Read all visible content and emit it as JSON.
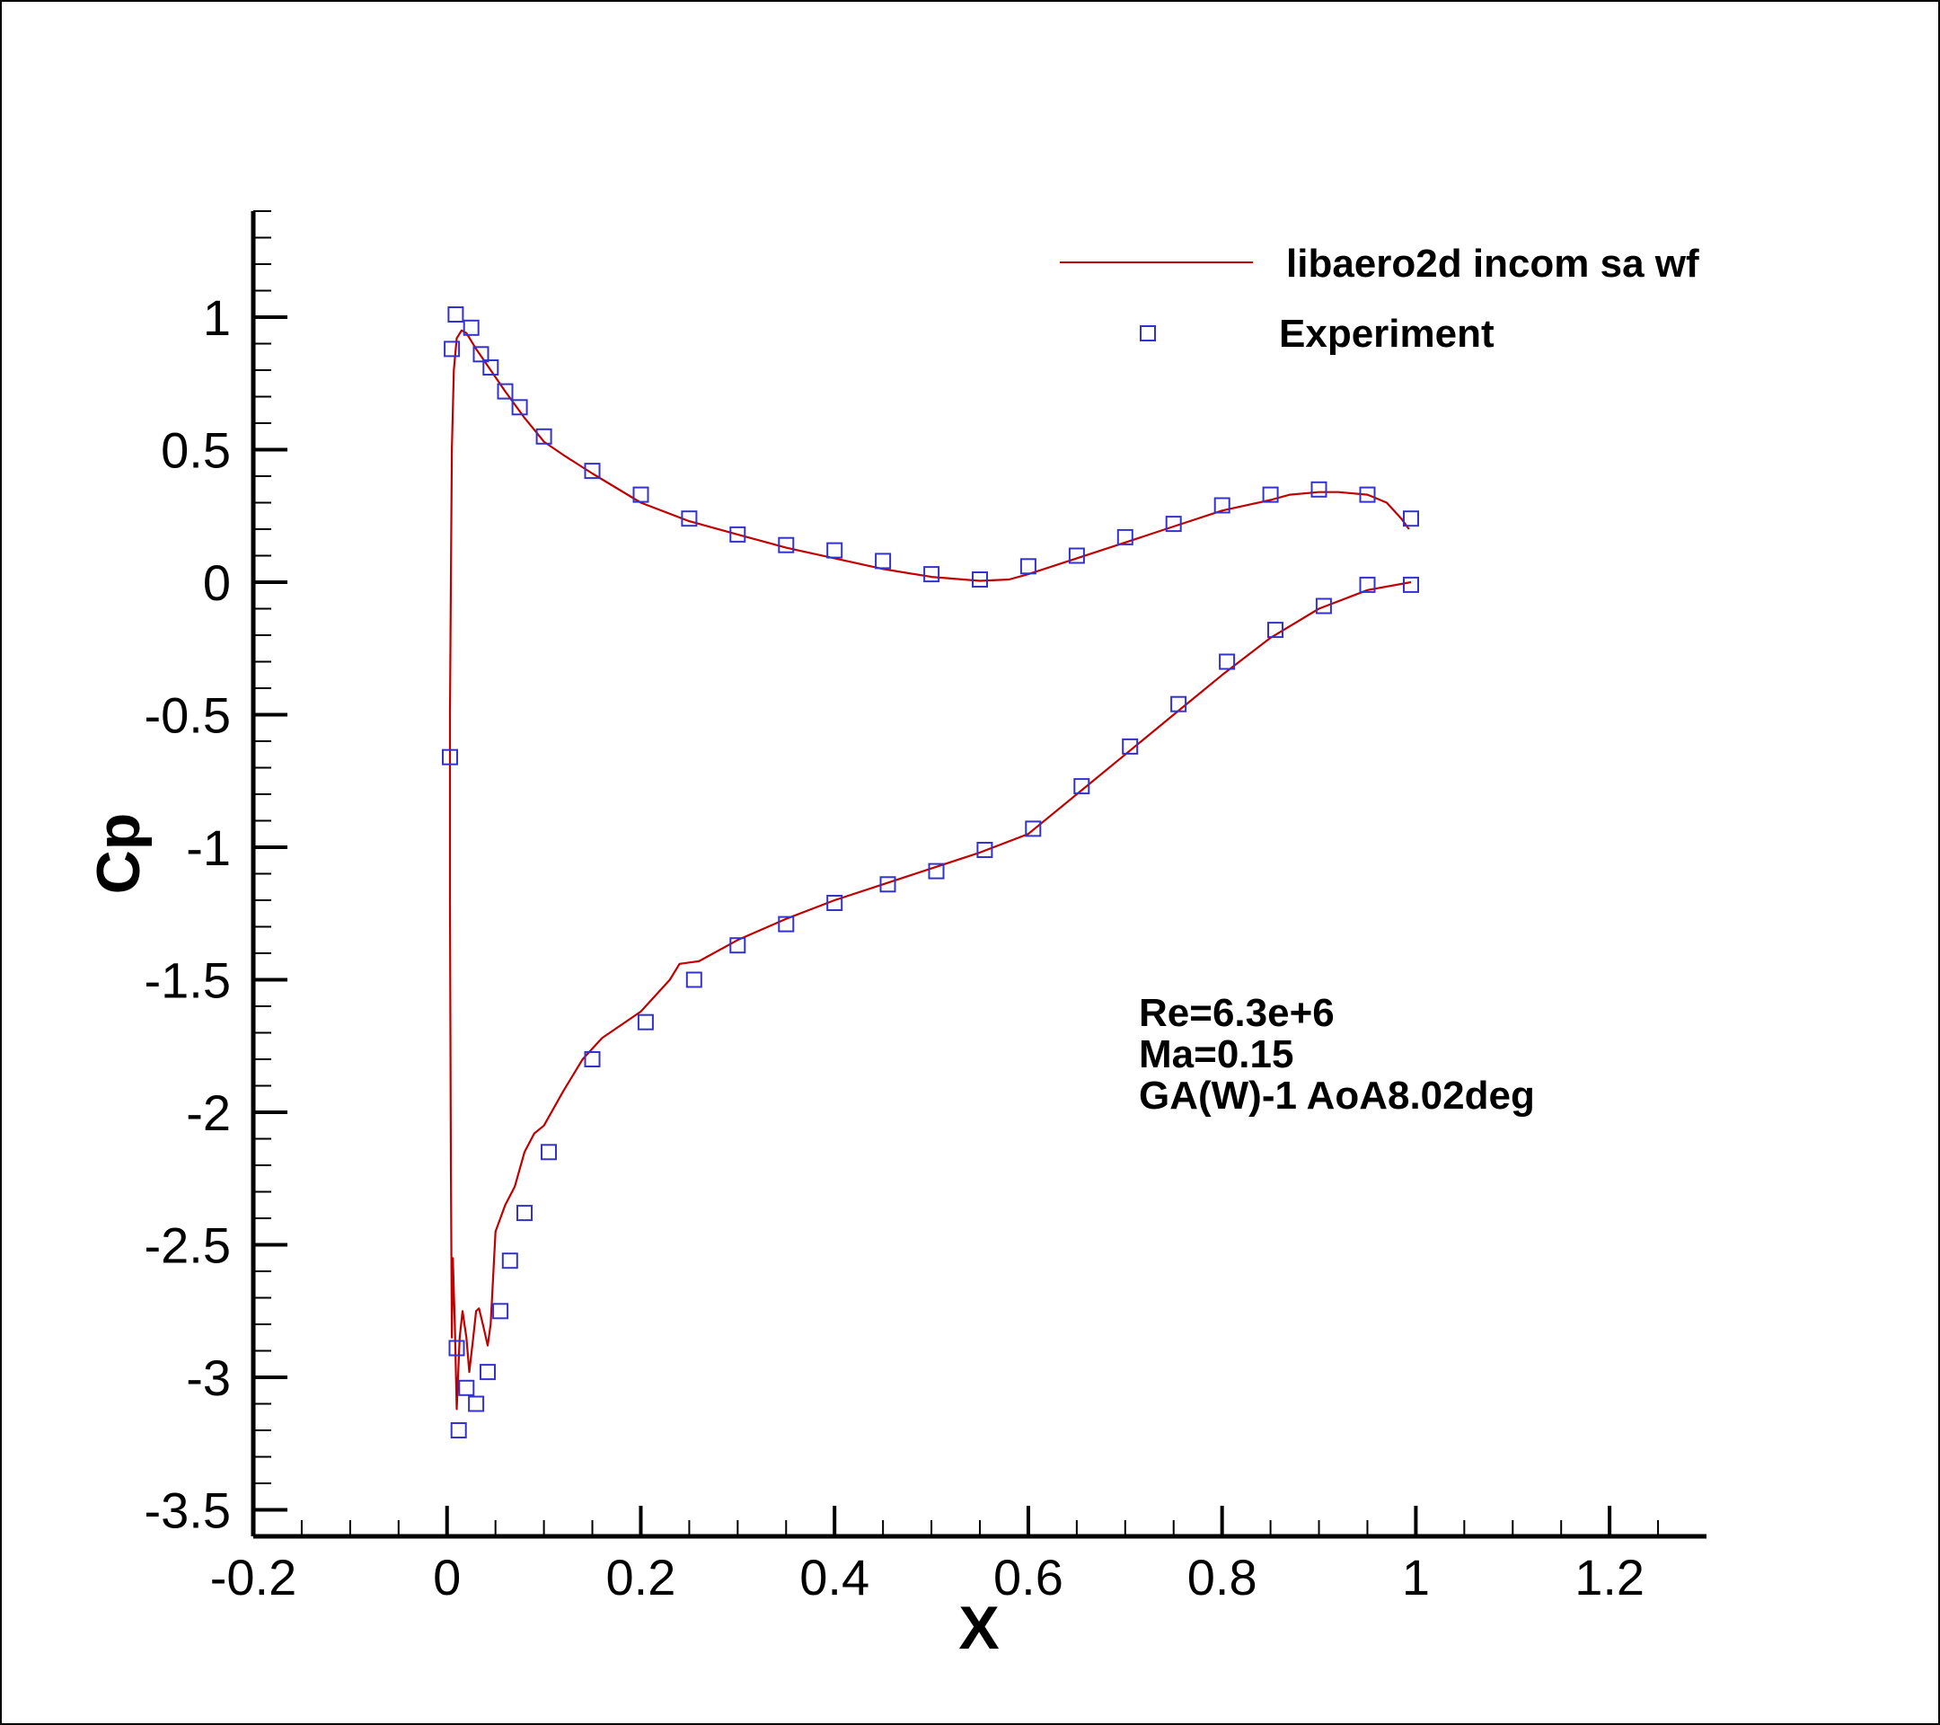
{
  "chart_data": {
    "type": "scatter",
    "xlabel": "X",
    "ylabel": "Cp",
    "xlim": [
      -0.2,
      1.3
    ],
    "ylim": [
      -3.6,
      1.4
    ],
    "y_axis_inverted": true,
    "grid": false,
    "x_ticks": [
      -0.2,
      0,
      0.2,
      0.4,
      0.6,
      0.8,
      1,
      1.2
    ],
    "x_tick_labels": [
      "-0.2",
      "0",
      "0.2",
      "0.4",
      "0.6",
      "0.8",
      "1",
      "1.2"
    ],
    "y_ticks": [
      1,
      0.5,
      0,
      -0.5,
      -1,
      -1.5,
      -2,
      -2.5,
      -3,
      -3.5
    ],
    "y_tick_labels": [
      "1",
      "0.5",
      "0",
      "-0.5",
      "-1",
      "-1.5",
      "-2",
      "-2.5",
      "-3",
      "-3.5"
    ],
    "legend_position": "top-right",
    "annotations": [
      "Re=6.3e+6",
      "Ma=0.15",
      "GA(W)-1 AoA8.02deg"
    ],
    "series": [
      {
        "name": "libaero2d incom sa wf",
        "kind": "line",
        "color": "#c00000",
        "points": [
          [
            0.993,
            0.2
          ],
          [
            0.985,
            0.24
          ],
          [
            0.97,
            0.3
          ],
          [
            0.95,
            0.33
          ],
          [
            0.92,
            0.34
          ],
          [
            0.9,
            0.34
          ],
          [
            0.87,
            0.33
          ],
          [
            0.85,
            0.31
          ],
          [
            0.8,
            0.27
          ],
          [
            0.75,
            0.21
          ],
          [
            0.7,
            0.15
          ],
          [
            0.65,
            0.09
          ],
          [
            0.6,
            0.03
          ],
          [
            0.58,
            0.01
          ],
          [
            0.55,
            0.005
          ],
          [
            0.5,
            0.02
          ],
          [
            0.45,
            0.05
          ],
          [
            0.4,
            0.09
          ],
          [
            0.35,
            0.13
          ],
          [
            0.3,
            0.18
          ],
          [
            0.25,
            0.23
          ],
          [
            0.2,
            0.3
          ],
          [
            0.15,
            0.41
          ],
          [
            0.12,
            0.48
          ],
          [
            0.1,
            0.53
          ],
          [
            0.08,
            0.62
          ],
          [
            0.06,
            0.72
          ],
          [
            0.045,
            0.8
          ],
          [
            0.03,
            0.88
          ],
          [
            0.02,
            0.94
          ],
          [
            0.015,
            0.95
          ],
          [
            0.01,
            0.92
          ],
          [
            0.007,
            0.8
          ],
          [
            0.005,
            0.5
          ],
          [
            0.004,
            0.0
          ],
          [
            0.003,
            -0.5
          ],
          [
            0.003,
            -1.2
          ],
          [
            0.004,
            -2.2
          ],
          [
            0.005,
            -2.85
          ],
          [
            0.006,
            -2.55
          ],
          [
            0.008,
            -2.8
          ],
          [
            0.01,
            -3.12
          ],
          [
            0.013,
            -2.85
          ],
          [
            0.016,
            -2.75
          ],
          [
            0.02,
            -2.85
          ],
          [
            0.023,
            -2.98
          ],
          [
            0.027,
            -2.85
          ],
          [
            0.03,
            -2.75
          ],
          [
            0.033,
            -2.74
          ],
          [
            0.037,
            -2.8
          ],
          [
            0.042,
            -2.88
          ],
          [
            0.045,
            -2.8
          ],
          [
            0.05,
            -2.45
          ],
          [
            0.055,
            -2.4
          ],
          [
            0.06,
            -2.35
          ],
          [
            0.07,
            -2.28
          ],
          [
            0.08,
            -2.15
          ],
          [
            0.09,
            -2.08
          ],
          [
            0.1,
            -2.05
          ],
          [
            0.12,
            -1.92
          ],
          [
            0.14,
            -1.8
          ],
          [
            0.16,
            -1.72
          ],
          [
            0.2,
            -1.62
          ],
          [
            0.23,
            -1.5
          ],
          [
            0.24,
            -1.44
          ],
          [
            0.26,
            -1.43
          ],
          [
            0.3,
            -1.35
          ],
          [
            0.35,
            -1.27
          ],
          [
            0.4,
            -1.2
          ],
          [
            0.45,
            -1.14
          ],
          [
            0.5,
            -1.08
          ],
          [
            0.55,
            -1.02
          ],
          [
            0.6,
            -0.95
          ],
          [
            0.65,
            -0.8
          ],
          [
            0.7,
            -0.65
          ],
          [
            0.75,
            -0.5
          ],
          [
            0.8,
            -0.35
          ],
          [
            0.85,
            -0.21
          ],
          [
            0.9,
            -0.1
          ],
          [
            0.95,
            -0.03
          ],
          [
            0.995,
            0.0
          ]
        ]
      },
      {
        "name": "Experiment",
        "kind": "marker",
        "marker": "square",
        "color": "#3333cc",
        "points": [
          [
            0.009,
            1.01
          ],
          [
            0.005,
            0.88
          ],
          [
            0.025,
            0.96
          ],
          [
            0.035,
            0.86
          ],
          [
            0.045,
            0.81
          ],
          [
            0.06,
            0.72
          ],
          [
            0.075,
            0.66
          ],
          [
            0.1,
            0.55
          ],
          [
            0.15,
            0.42
          ],
          [
            0.2,
            0.33
          ],
          [
            0.25,
            0.24
          ],
          [
            0.3,
            0.18
          ],
          [
            0.35,
            0.14
          ],
          [
            0.4,
            0.12
          ],
          [
            0.45,
            0.08
          ],
          [
            0.5,
            0.03
          ],
          [
            0.55,
            0.01
          ],
          [
            0.6,
            0.06
          ],
          [
            0.65,
            0.1
          ],
          [
            0.7,
            0.17
          ],
          [
            0.75,
            0.22
          ],
          [
            0.8,
            0.29
          ],
          [
            0.85,
            0.33
          ],
          [
            0.9,
            0.35
          ],
          [
            0.95,
            0.33
          ],
          [
            0.995,
            0.24
          ],
          [
            0.003,
            -0.66
          ],
          [
            0.01,
            -2.89
          ],
          [
            0.012,
            -3.2
          ],
          [
            0.02,
            -3.04
          ],
          [
            0.03,
            -3.1
          ],
          [
            0.042,
            -2.98
          ],
          [
            0.055,
            -2.75
          ],
          [
            0.065,
            -2.56
          ],
          [
            0.08,
            -2.38
          ],
          [
            0.105,
            -2.15
          ],
          [
            0.15,
            -1.8
          ],
          [
            0.205,
            -1.66
          ],
          [
            0.255,
            -1.5
          ],
          [
            0.3,
            -1.37
          ],
          [
            0.35,
            -1.29
          ],
          [
            0.4,
            -1.21
          ],
          [
            0.455,
            -1.14
          ],
          [
            0.505,
            -1.09
          ],
          [
            0.555,
            -1.01
          ],
          [
            0.605,
            -0.93
          ],
          [
            0.655,
            -0.77
          ],
          [
            0.705,
            -0.62
          ],
          [
            0.755,
            -0.46
          ],
          [
            0.805,
            -0.3
          ],
          [
            0.855,
            -0.18
          ],
          [
            0.905,
            -0.09
          ],
          [
            0.95,
            -0.01
          ],
          [
            0.995,
            -0.01
          ]
        ]
      }
    ]
  }
}
